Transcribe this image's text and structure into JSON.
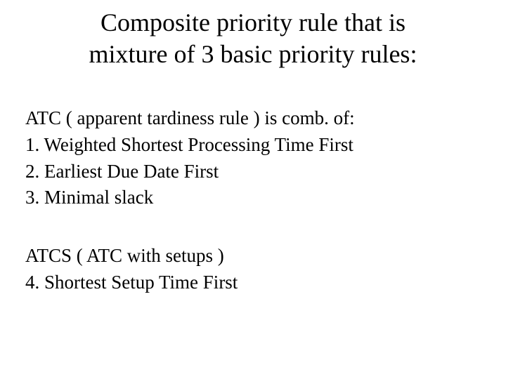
{
  "title_line1": "Composite priority rule that is",
  "title_line2": "mixture of 3 basic priority rules:",
  "block1": {
    "intro": "ATC ( apparent tardiness rule ) is comb. of:",
    "item1": "1. Weighted Shortest Processing Time First",
    "item2": "2. Earliest Due Date First",
    "item3": "3. Minimal slack"
  },
  "block2": {
    "intro": "ATCS ( ATC with setups )",
    "item4": "4. Shortest Setup Time First"
  }
}
